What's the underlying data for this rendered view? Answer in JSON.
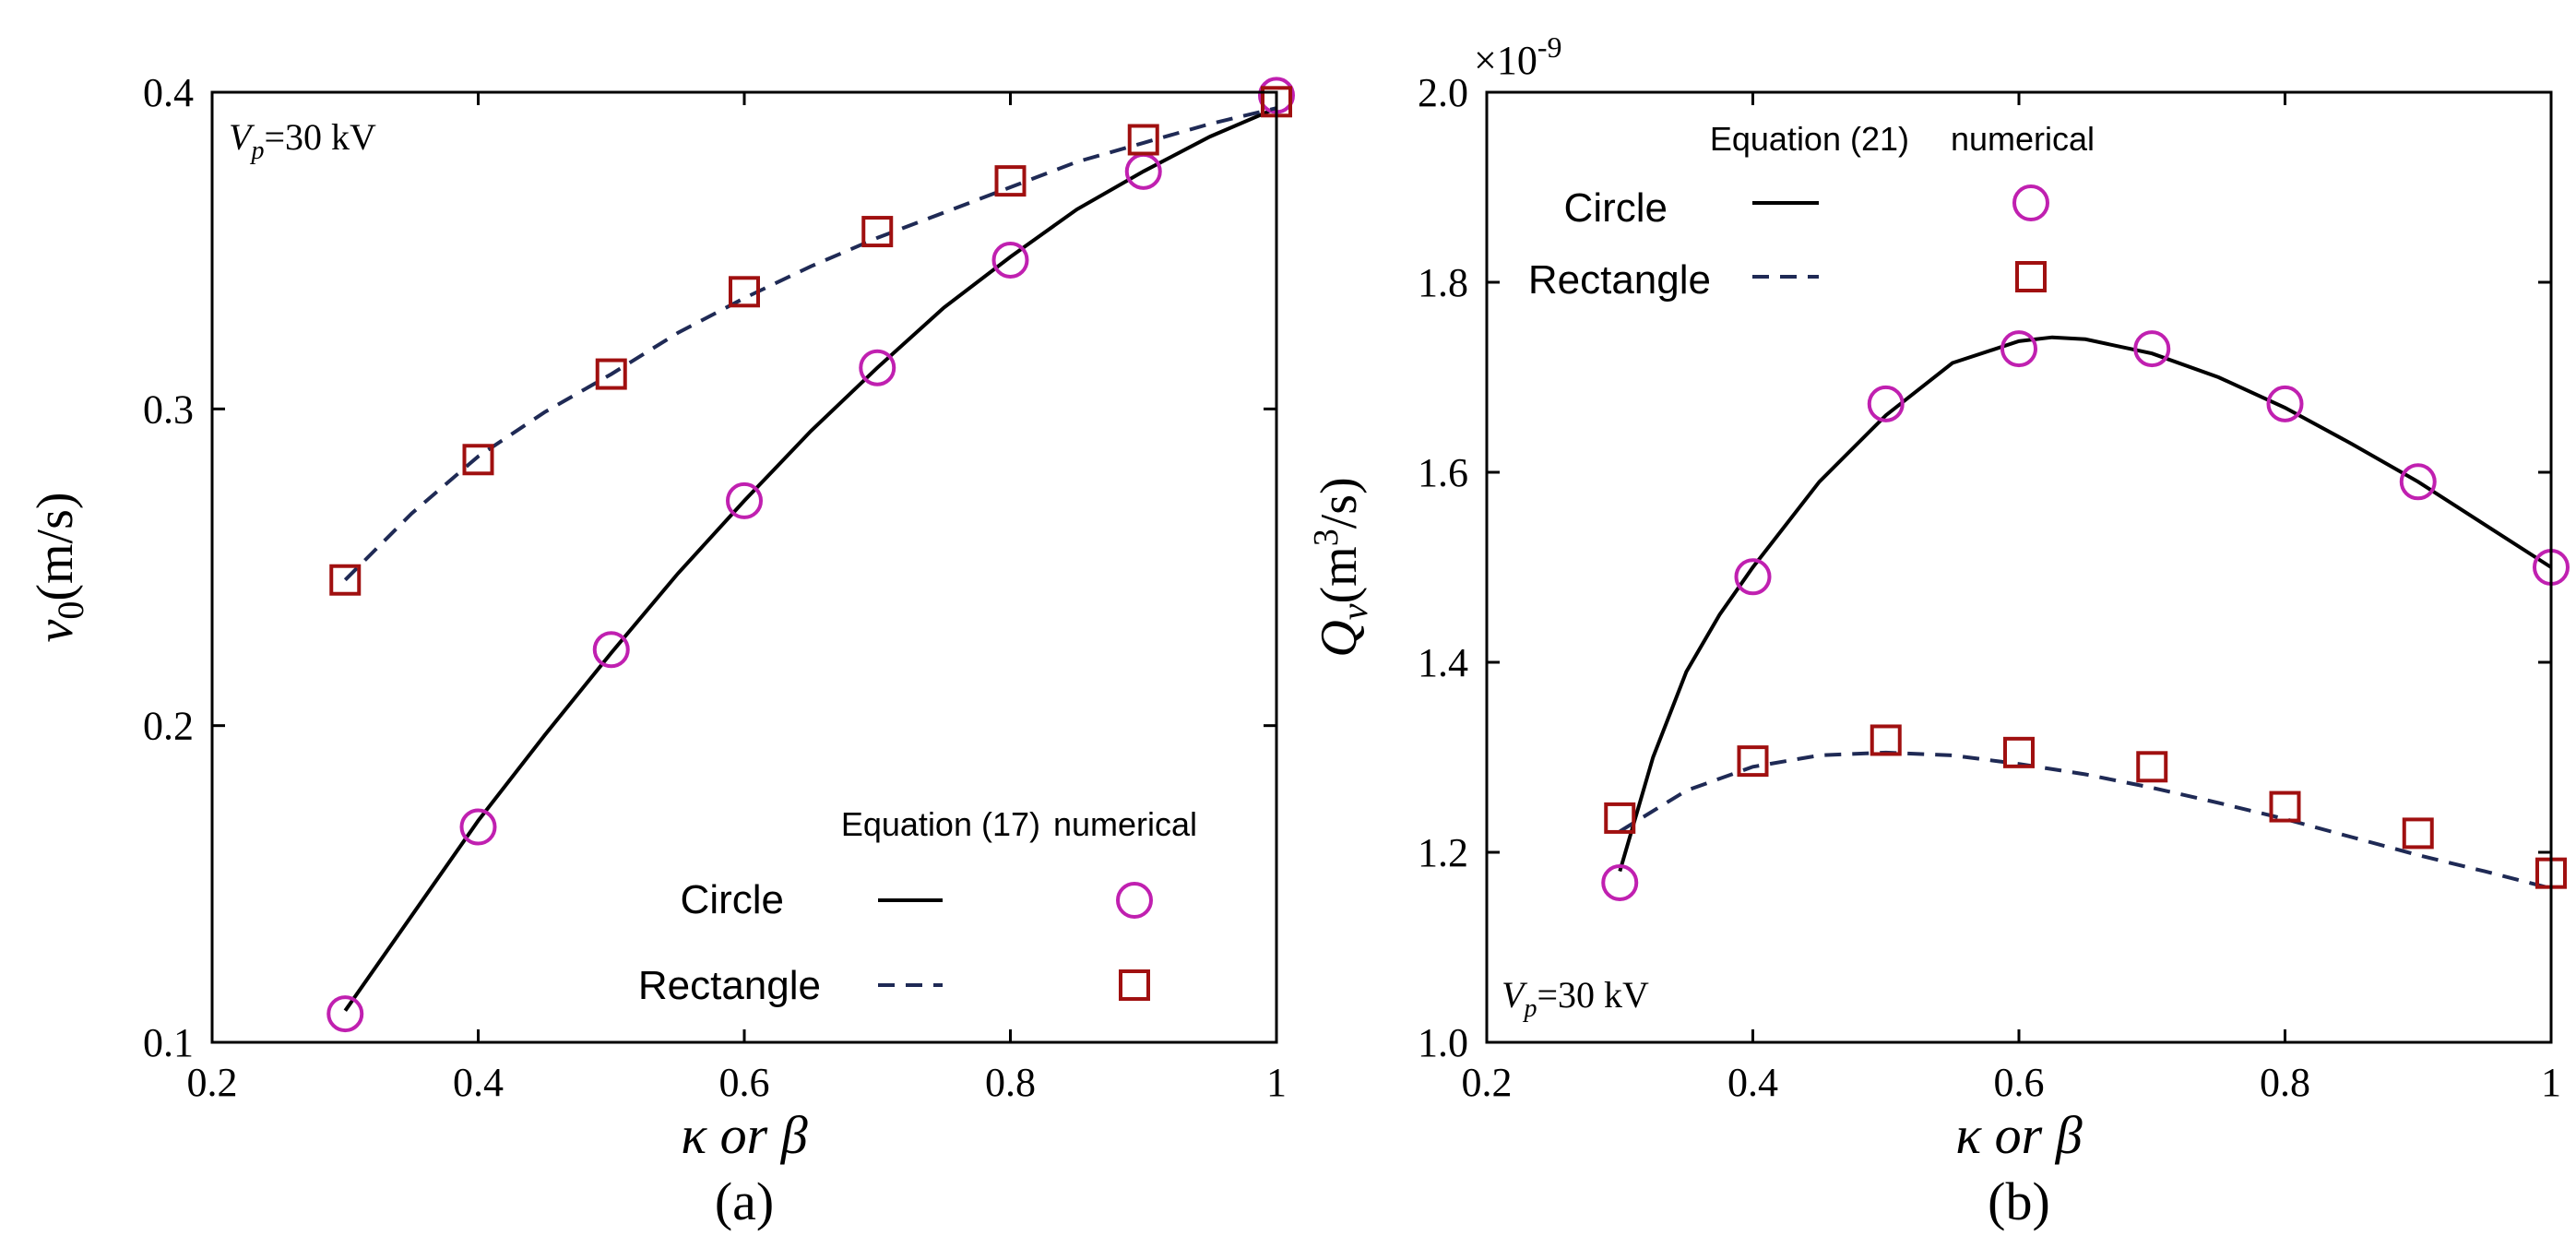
{
  "colors": {
    "circle_line": "#000000",
    "rectangle_line": "#1f2a55",
    "circle_marker": "#c020b0",
    "rectangle_marker": "#a01010"
  },
  "chart_data": [
    {
      "type": "line",
      "panel_label": "(a)",
      "title": "",
      "xlabel": "κ or β",
      "ylabel": "v0(m/s)",
      "ylabel_main": "v",
      "ylabel_sub": "0",
      "ylabel_rest": "(m/s)",
      "xlim": [
        0.2,
        1.0
      ],
      "ylim": [
        0.1,
        0.4
      ],
      "xticks": [
        "0.2",
        "0.4",
        "0.6",
        "0.8",
        "1"
      ],
      "yticks": [
        "0.1",
        "0.2",
        "0.3",
        "0.4"
      ],
      "annotation": {
        "main": "V",
        "sub": "p",
        "rest": "=30 kV",
        "position": "top-left"
      },
      "legend": {
        "position": "bottom-right",
        "header_curve": "Equation (17)",
        "header_points": "numerical",
        "rows": [
          "Circle",
          "Rectangle"
        ]
      },
      "series": [
        {
          "name": "Circle",
          "curve_x": [
            0.3,
            0.35,
            0.4,
            0.45,
            0.5,
            0.55,
            0.6,
            0.65,
            0.7,
            0.75,
            0.8,
            0.85,
            0.9,
            0.95,
            1.0
          ],
          "curve_y": [
            0.11,
            0.14,
            0.17,
            0.197,
            0.223,
            0.248,
            0.271,
            0.293,
            0.313,
            0.332,
            0.348,
            0.363,
            0.375,
            0.386,
            0.395
          ],
          "points_x": [
            0.3,
            0.4,
            0.5,
            0.6,
            0.7,
            0.8,
            0.9,
            1.0
          ],
          "points_y": [
            0.109,
            0.168,
            0.224,
            0.271,
            0.313,
            0.347,
            0.375,
            0.399
          ]
        },
        {
          "name": "Rectangle",
          "curve_x": [
            0.3,
            0.35,
            0.4,
            0.45,
            0.5,
            0.55,
            0.6,
            0.65,
            0.7,
            0.75,
            0.8,
            0.85,
            0.9,
            0.95,
            1.0
          ],
          "curve_y": [
            0.246,
            0.267,
            0.285,
            0.299,
            0.311,
            0.324,
            0.335,
            0.345,
            0.354,
            0.362,
            0.37,
            0.378,
            0.384,
            0.39,
            0.395
          ],
          "points_x": [
            0.3,
            0.4,
            0.5,
            0.6,
            0.7,
            0.8,
            0.9,
            1.0
          ],
          "points_y": [
            0.246,
            0.284,
            0.311,
            0.337,
            0.356,
            0.372,
            0.385,
            0.397
          ]
        }
      ]
    },
    {
      "type": "line",
      "panel_label": "(b)",
      "title": "",
      "xlabel": "κ or β",
      "ylabel": "Qv(m3/s)",
      "ylabel_main": "Q",
      "ylabel_sub": "v",
      "ylabel_rest_pre": "(m",
      "ylabel_sup": "3",
      "ylabel_rest_post": "/s)",
      "multiplier": {
        "base": "×10",
        "exp": "-9"
      },
      "xlim": [
        0.2,
        1.0
      ],
      "ylim": [
        1.0,
        2.0
      ],
      "xticks": [
        "0.2",
        "0.4",
        "0.6",
        "0.8",
        "1"
      ],
      "yticks": [
        "1.0",
        "1.2",
        "1.4",
        "1.6",
        "1.8",
        "2.0"
      ],
      "annotation": {
        "main": "V",
        "sub": "p",
        "rest": "=30 kV",
        "position": "bottom-left"
      },
      "legend": {
        "position": "top-left",
        "header_curve": "Equation (21)",
        "header_points": "numerical",
        "rows": [
          "Circle",
          "Rectangle"
        ]
      },
      "series": [
        {
          "name": "Circle",
          "curve_x": [
            0.3,
            0.325,
            0.35,
            0.375,
            0.4,
            0.45,
            0.5,
            0.55,
            0.6,
            0.625,
            0.65,
            0.7,
            0.75,
            0.8,
            0.85,
            0.9,
            0.95,
            1.0
          ],
          "curve_y": [
            1.18,
            1.3,
            1.39,
            1.45,
            1.5,
            1.59,
            1.66,
            1.715,
            1.738,
            1.742,
            1.74,
            1.725,
            1.7,
            1.668,
            1.63,
            1.59,
            1.545,
            1.5
          ],
          "points_x": [
            0.3,
            0.4,
            0.5,
            0.6,
            0.7,
            0.8,
            0.9,
            1.0
          ],
          "points_y": [
            1.168,
            1.49,
            1.672,
            1.73,
            1.73,
            1.672,
            1.59,
            1.5
          ]
        },
        {
          "name": "Rectangle",
          "curve_x": [
            0.3,
            0.35,
            0.4,
            0.45,
            0.5,
            0.55,
            0.6,
            0.65,
            0.7,
            0.75,
            0.8,
            0.85,
            0.9,
            0.95,
            1.0
          ],
          "curve_y": [
            1.222,
            1.265,
            1.29,
            1.302,
            1.305,
            1.302,
            1.293,
            1.282,
            1.268,
            1.252,
            1.235,
            1.216,
            1.197,
            1.18,
            1.162
          ],
          "points_x": [
            0.3,
            0.4,
            0.5,
            0.6,
            0.7,
            0.8,
            0.9,
            1.0
          ],
          "points_y": [
            1.236,
            1.296,
            1.318,
            1.305,
            1.29,
            1.248,
            1.22,
            1.178
          ]
        }
      ]
    }
  ]
}
